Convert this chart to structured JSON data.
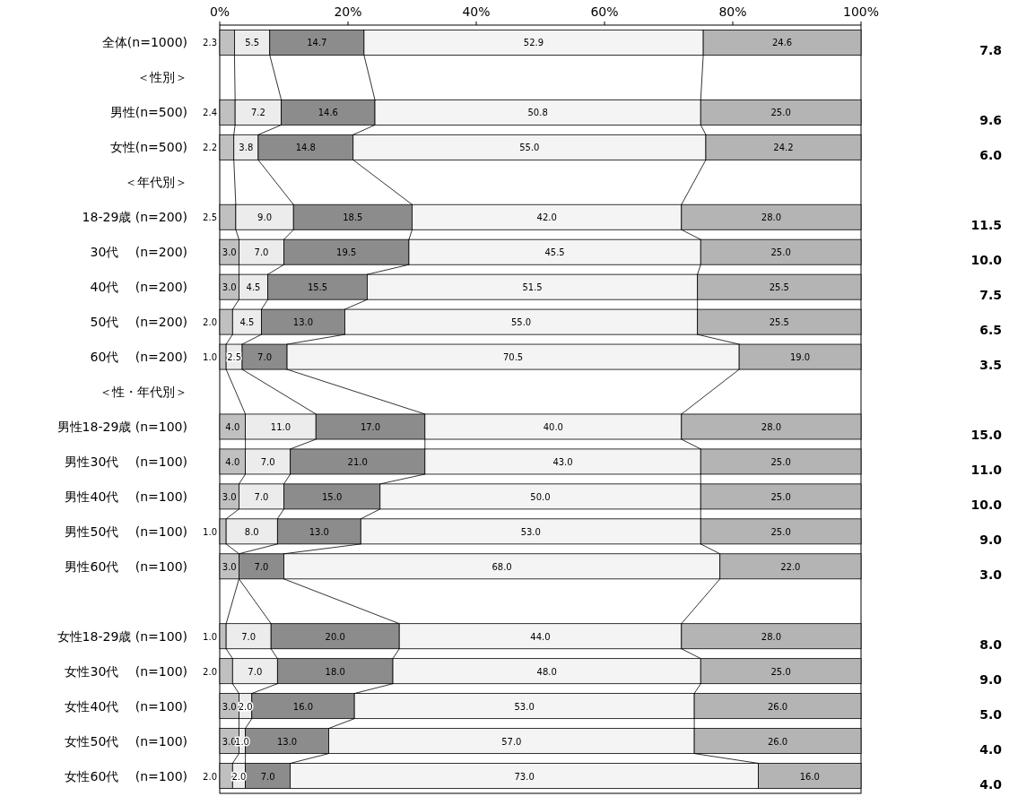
{
  "chart_data": {
    "type": "bar",
    "orientation": "horizontal",
    "stacked": true,
    "grid": false,
    "xlim": [
      0,
      100
    ],
    "xticks": [
      {
        "value": 0,
        "label": "0%"
      },
      {
        "value": 20,
        "label": "20%"
      },
      {
        "value": 40,
        "label": "40%"
      },
      {
        "value": 60,
        "label": "60%"
      },
      {
        "value": 80,
        "label": "80%"
      },
      {
        "value": 100,
        "label": "100%"
      }
    ],
    "categories": [
      "全体(n=1000)",
      "＜性別＞",
      "男性(n=500)",
      "女性(n=500)",
      "＜年代別＞",
      "18-29歳 (n=200)",
      "30代　 (n=200)",
      "40代　 (n=200)",
      "50代　 (n=200)",
      "60代　 (n=200)",
      "＜性・年代別＞",
      "男性18-29歳 (n=100)",
      "男性30代　 (n=100)",
      "男性40代　 (n=100)",
      "男性50代　 (n=100)",
      "男性60代　 (n=100)",
      null,
      "女性18-29歳 (n=100)",
      "女性30代　 (n=100)",
      "女性40代　 (n=100)",
      "女性50代　 (n=100)",
      "女性60代　 (n=100)"
    ],
    "series": [
      {
        "color": "#c0c0c0",
        "values": [
          2.3,
          null,
          2.4,
          2.2,
          null,
          2.5,
          3.0,
          3.0,
          2.0,
          1.0,
          null,
          4.0,
          4.0,
          3.0,
          1.0,
          3.0,
          null,
          1.0,
          2.0,
          3.0,
          3.0,
          2.0
        ],
        "value_labels": [
          "2.3",
          null,
          "2.4",
          "2.2",
          null,
          "2.5",
          "3.0",
          "3.0",
          "2.0",
          "1.0",
          null,
          "4.0",
          "4.0",
          "3.0",
          "1.0",
          "3.0",
          null,
          "1.0",
          "2.0",
          "3.0",
          "3.0",
          "2.0"
        ]
      },
      {
        "color": "#ececec",
        "values": [
          5.5,
          null,
          7.2,
          3.8,
          null,
          9.0,
          7.0,
          4.5,
          4.5,
          2.5,
          null,
          11.0,
          7.0,
          7.0,
          8.0,
          0.0,
          null,
          7.0,
          7.0,
          2.0,
          1.0,
          2.0
        ],
        "value_labels": [
          "5.5",
          null,
          "7.2",
          "3.8",
          null,
          "9.0",
          "7.0",
          "4.5",
          "4.5",
          "2.5",
          null,
          "11.0",
          "7.0",
          "7.0",
          "8.0",
          null,
          null,
          "7.0",
          "7.0",
          "2.0",
          "1.0",
          "2.0"
        ]
      },
      {
        "color": "#8c8c8c",
        "values": [
          14.7,
          null,
          14.6,
          14.8,
          null,
          18.5,
          19.5,
          15.5,
          13.0,
          7.0,
          null,
          17.0,
          21.0,
          15.0,
          13.0,
          7.0,
          null,
          20.0,
          18.0,
          16.0,
          13.0,
          7.0
        ],
        "value_labels": [
          "14.7",
          null,
          "14.6",
          "14.8",
          null,
          "18.5",
          "19.5",
          "15.5",
          "13.0",
          "7.0",
          null,
          "17.0",
          "21.0",
          "15.0",
          "13.0",
          "7.0",
          null,
          "20.0",
          "18.0",
          "16.0",
          "13.0",
          "7.0"
        ]
      },
      {
        "color": "#f4f4f4",
        "values": [
          52.9,
          null,
          50.8,
          55.0,
          null,
          42.0,
          45.5,
          51.5,
          55.0,
          70.5,
          null,
          40.0,
          43.0,
          50.0,
          53.0,
          68.0,
          null,
          44.0,
          48.0,
          53.0,
          57.0,
          73.0
        ],
        "value_labels": [
          "52.9",
          null,
          "50.8",
          "55.0",
          null,
          "42.0",
          "45.5",
          "51.5",
          "55.0",
          "70.5",
          null,
          "40.0",
          "43.0",
          "50.0",
          "53.0",
          "68.0",
          null,
          "44.0",
          "48.0",
          "53.0",
          "57.0",
          "73.0"
        ]
      },
      {
        "color": "#b4b4b4",
        "values": [
          24.6,
          null,
          25.0,
          24.2,
          null,
          28.0,
          25.0,
          25.5,
          25.5,
          19.0,
          null,
          28.0,
          25.0,
          25.0,
          25.0,
          22.0,
          null,
          28.0,
          25.0,
          26.0,
          26.0,
          16.0
        ],
        "value_labels": [
          "24.6",
          null,
          "25.0",
          "24.2",
          null,
          "28.0",
          "25.0",
          "25.5",
          "25.5",
          "19.0",
          null,
          "28.0",
          "25.0",
          "25.0",
          "25.0",
          "22.0",
          null,
          "28.0",
          "25.0",
          "26.0",
          "26.0",
          "16.0"
        ]
      }
    ],
    "annotations": [
      "7.8",
      "9.6",
      "6.0",
      "11.5",
      "10.0",
      "7.5",
      "6.5",
      "3.5",
      "15.0",
      "11.0",
      "10.0",
      "9.0",
      "3.0",
      "8.0",
      "9.0",
      "5.0",
      "4.0",
      "4.0"
    ]
  }
}
